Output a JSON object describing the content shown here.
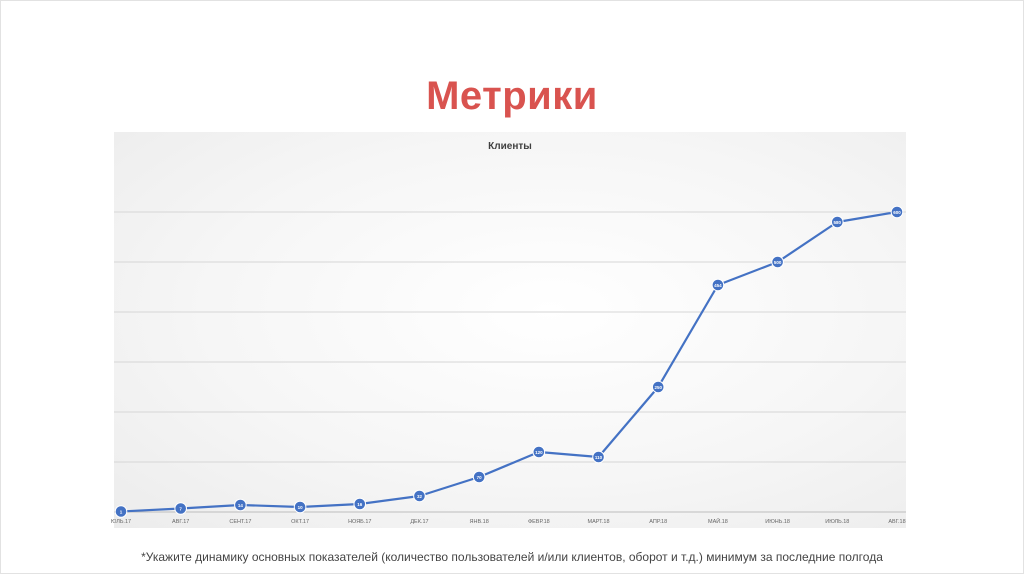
{
  "slide": {
    "title": "Метрики",
    "footnote": "*Укажите динамику основных показателей (количество пользователей и/или клиентов, оборот и т.д.) минимум за последние полгода"
  },
  "chart_data": {
    "type": "line",
    "title": "Клиенты",
    "categories": [
      "ЮЛЬ.17",
      "АВГ.17",
      "СЕНТ.17",
      "ОКТ.17",
      "НОЯБ.17",
      "ДЕК.17",
      "ЯНВ.18",
      "ФЕВР.18",
      "МАРТ.18",
      "АПР.18",
      "МАЙ.18",
      "ИЮНЬ.18",
      "ИЮЛЬ.18",
      "АВГ.18"
    ],
    "series": [
      {
        "values": [
          1,
          7,
          14,
          10,
          16,
          32,
          70,
          120,
          110,
          250,
          454,
          500,
          580,
          600
        ],
        "labels": [
          "1",
          "7",
          "14",
          "10",
          "16",
          "32",
          "70",
          "120",
          "110",
          "250",
          "454",
          "500",
          "580",
          "600"
        ]
      }
    ],
    "ylim": [
      0,
      600
    ],
    "y_gridlines": [
      0,
      100,
      200,
      300,
      400,
      500,
      600
    ],
    "grid": true,
    "legend": "none",
    "color": "#4472c4"
  }
}
